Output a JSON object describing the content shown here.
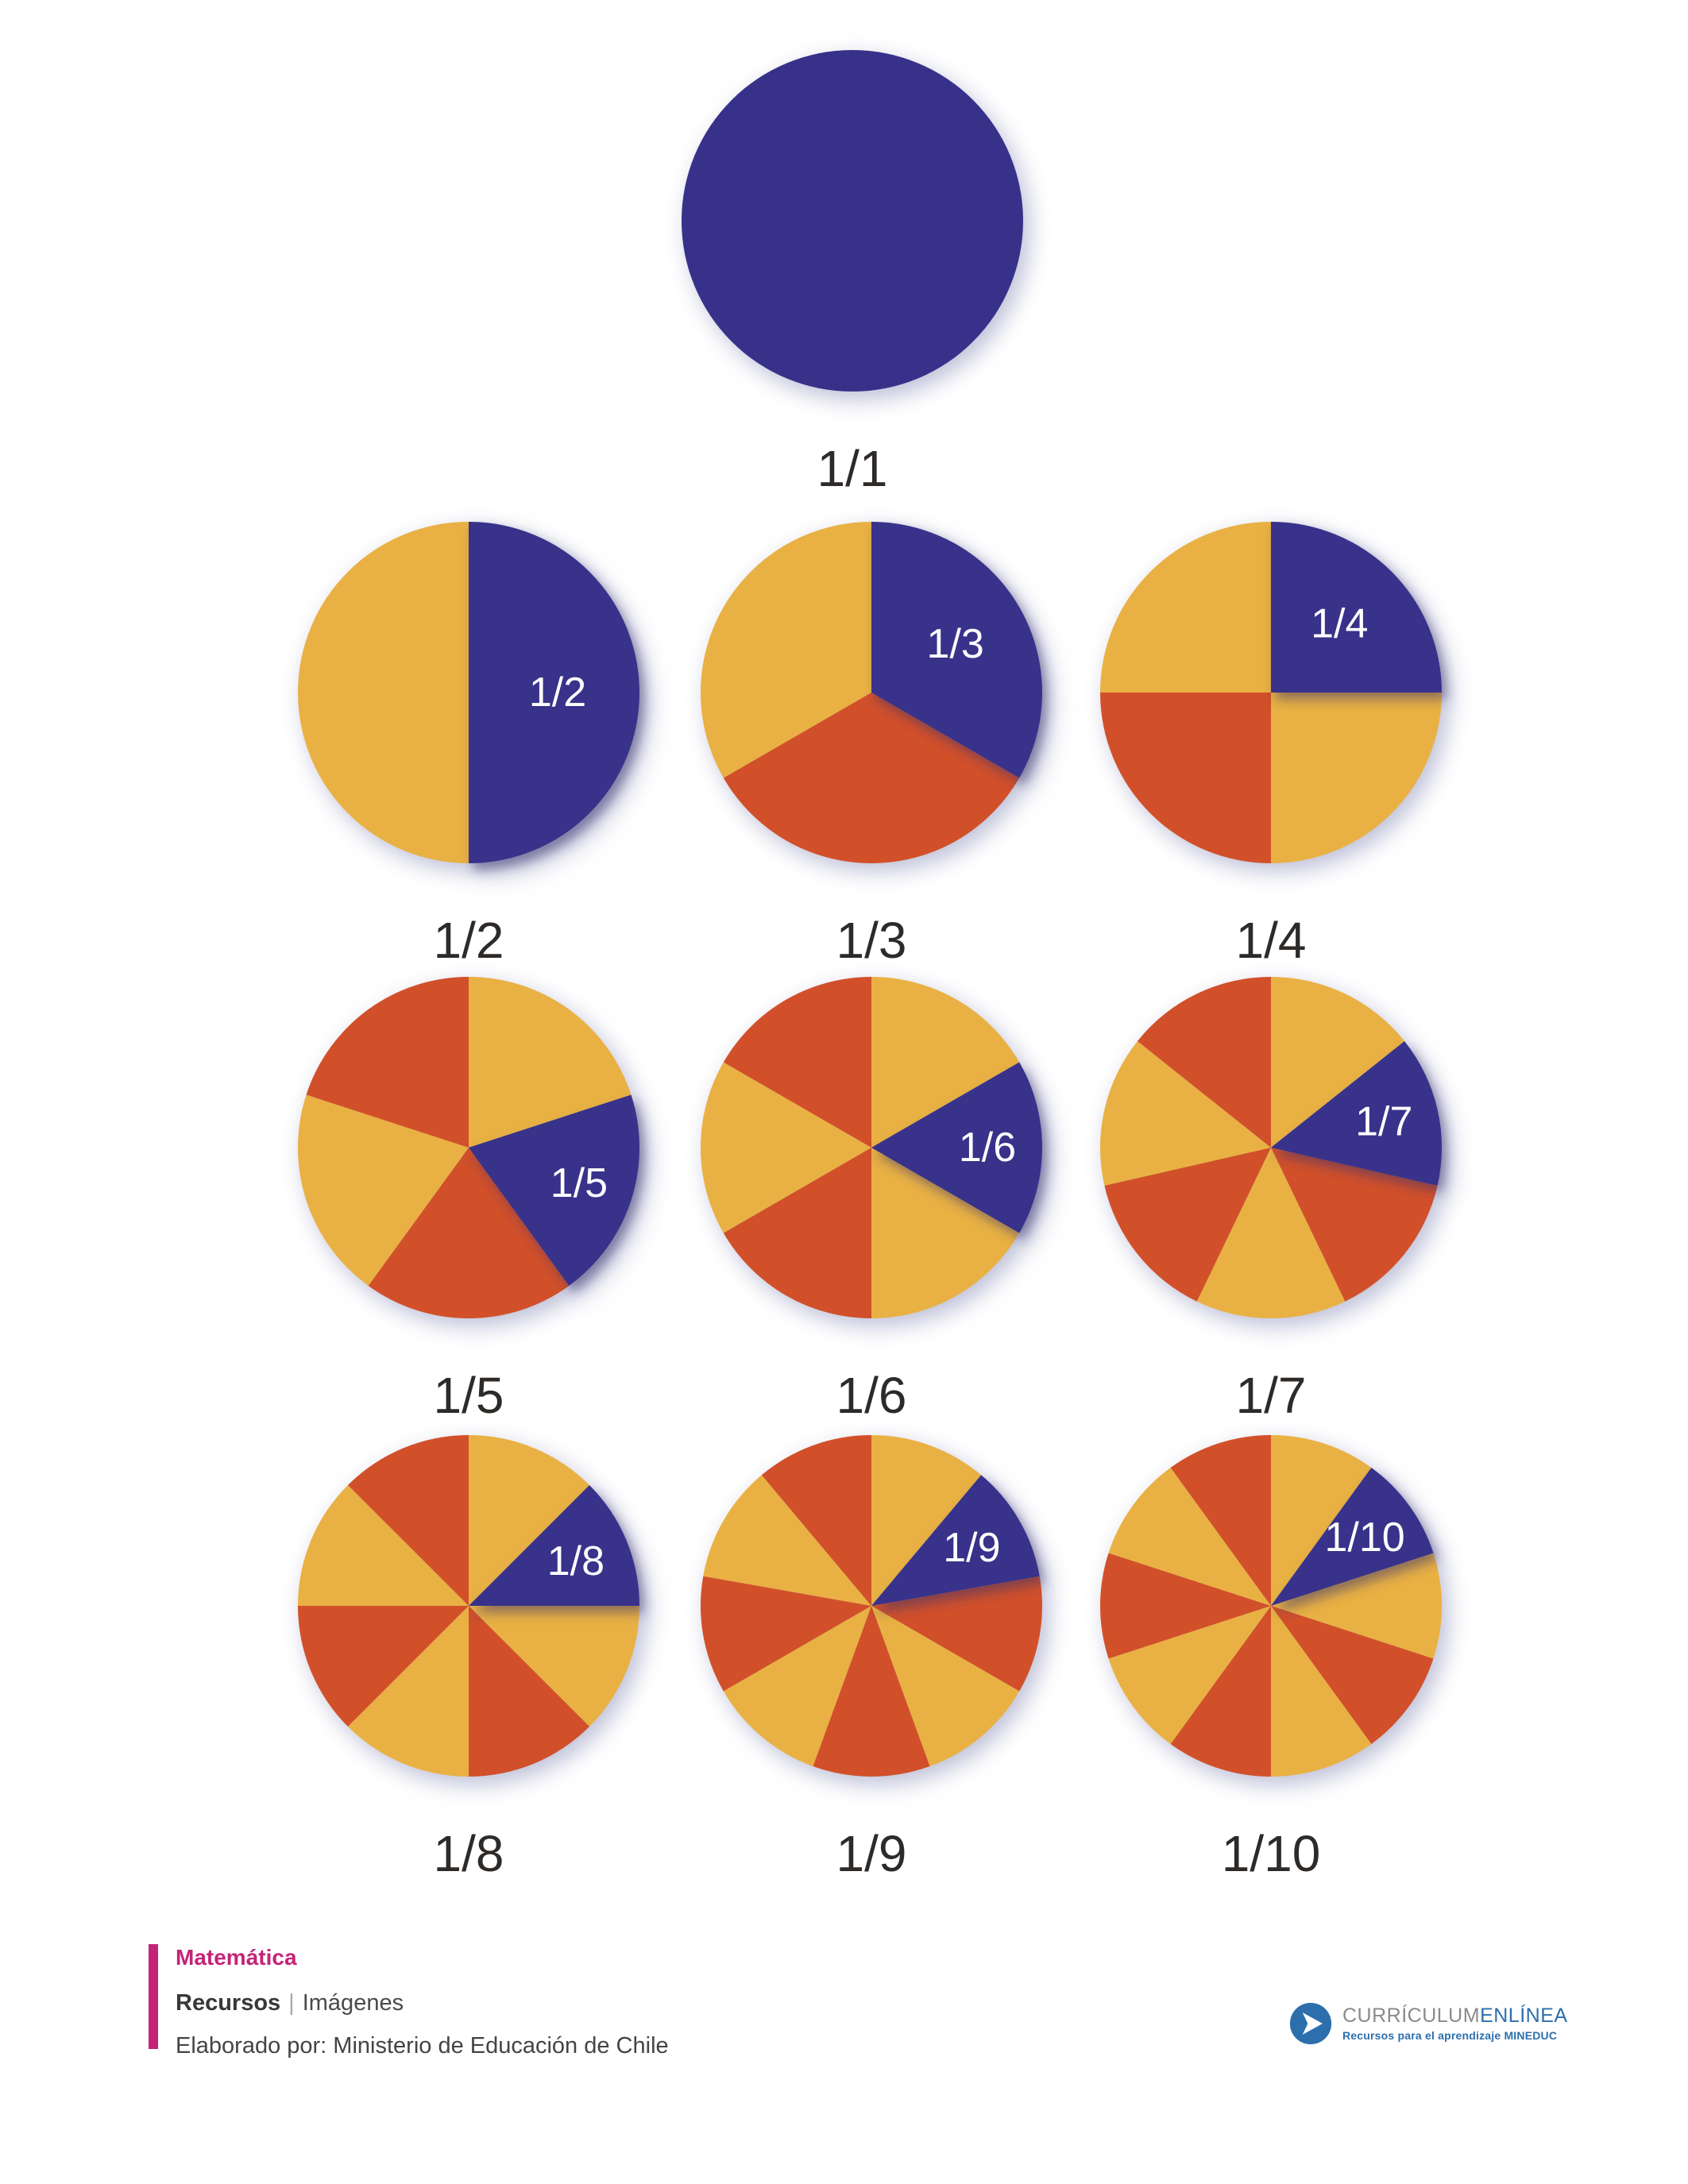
{
  "page": {
    "background": "#ffffff"
  },
  "colors": {
    "highlight_blue": "#38318A",
    "wedge_yellow": "#E9B143",
    "wedge_red": "#D1502A",
    "caption_text": "#2D2A28",
    "slice_label_text": "#FFFFFF",
    "accent_magenta": "#C42478",
    "logo_blue": "#2C6FAC",
    "logo_gray": "#8A8A8A"
  },
  "fractions": [
    {
      "caption": "1/1",
      "slice_label": null,
      "denominator": 1,
      "highlight_index": 0,
      "pattern": [
        "blue"
      ]
    },
    {
      "caption": "1/2",
      "slice_label": "1/2",
      "denominator": 2,
      "highlight_index": 0,
      "pattern": [
        "blue",
        "yellow"
      ]
    },
    {
      "caption": "1/3",
      "slice_label": "1/3",
      "denominator": 3,
      "highlight_index": 0,
      "pattern": [
        "blue",
        "red",
        "yellow"
      ]
    },
    {
      "caption": "1/4",
      "slice_label": "1/4",
      "denominator": 4,
      "highlight_index": 0,
      "pattern": [
        "blue",
        "yellow",
        "red",
        "yellow"
      ]
    },
    {
      "caption": "1/5",
      "slice_label": "1/5",
      "denominator": 5,
      "highlight_index": 1,
      "pattern": [
        "yellow",
        "blue",
        "red",
        "yellow",
        "red"
      ]
    },
    {
      "caption": "1/6",
      "slice_label": "1/6",
      "denominator": 6,
      "highlight_index": 1,
      "pattern": [
        "yellow",
        "blue",
        "yellow",
        "red",
        "yellow",
        "red"
      ]
    },
    {
      "caption": "1/7",
      "slice_label": "1/7",
      "denominator": 7,
      "highlight_index": 1,
      "pattern": [
        "yellow",
        "blue",
        "red",
        "yellow",
        "red",
        "yellow",
        "red"
      ]
    },
    {
      "caption": "1/8",
      "slice_label": "1/8",
      "denominator": 8,
      "highlight_index": 1,
      "pattern": [
        "yellow",
        "blue",
        "yellow",
        "red",
        "yellow",
        "red",
        "yellow",
        "red"
      ]
    },
    {
      "caption": "1/9",
      "slice_label": "1/9",
      "denominator": 9,
      "highlight_index": 1,
      "pattern": [
        "yellow",
        "blue",
        "red",
        "yellow",
        "red",
        "yellow",
        "red",
        "yellow",
        "red"
      ]
    },
    {
      "caption": "1/10",
      "slice_label": "1/10",
      "denominator": 10,
      "highlight_index": 1,
      "pattern": [
        "yellow",
        "blue",
        "yellow",
        "red",
        "yellow",
        "red",
        "yellow",
        "red",
        "yellow",
        "red"
      ]
    }
  ],
  "chart_data": {
    "type": "pie",
    "pies": [
      {
        "label": "1/1",
        "sectors": 1,
        "sector_value": 1.0,
        "highlighted_sector_label": "1/1"
      },
      {
        "label": "1/2",
        "sectors": 2,
        "sector_value": 0.5,
        "highlighted_sector_label": "1/2"
      },
      {
        "label": "1/3",
        "sectors": 3,
        "sector_value": 0.3333,
        "highlighted_sector_label": "1/3"
      },
      {
        "label": "1/4",
        "sectors": 4,
        "sector_value": 0.25,
        "highlighted_sector_label": "1/4"
      },
      {
        "label": "1/5",
        "sectors": 5,
        "sector_value": 0.2,
        "highlighted_sector_label": "1/5"
      },
      {
        "label": "1/6",
        "sectors": 6,
        "sector_value": 0.1667,
        "highlighted_sector_label": "1/6"
      },
      {
        "label": "1/7",
        "sectors": 7,
        "sector_value": 0.1429,
        "highlighted_sector_label": "1/7"
      },
      {
        "label": "1/8",
        "sectors": 8,
        "sector_value": 0.125,
        "highlighted_sector_label": "1/8"
      },
      {
        "label": "1/9",
        "sectors": 9,
        "sector_value": 0.1111,
        "highlighted_sector_label": "1/9"
      },
      {
        "label": "1/10",
        "sectors": 10,
        "sector_value": 0.1,
        "highlighted_sector_label": "1/10"
      }
    ],
    "note": "Each circle is divided into n equal sectors; one sector (1/n) is highlighted in blue and labeled."
  },
  "footer": {
    "subject": "Matemática",
    "category": "Recursos",
    "separator": "|",
    "subcategory": "Imágenes",
    "credit": "Elaborado por: Ministerio de Educación de Chile"
  },
  "logo": {
    "brand_primary": "CURRÍCULUM",
    "brand_secondary": "ENLÍNEA",
    "tagline": "Recursos para el aprendizaje MINEDUC",
    "icon": "play-arrow-icon"
  }
}
